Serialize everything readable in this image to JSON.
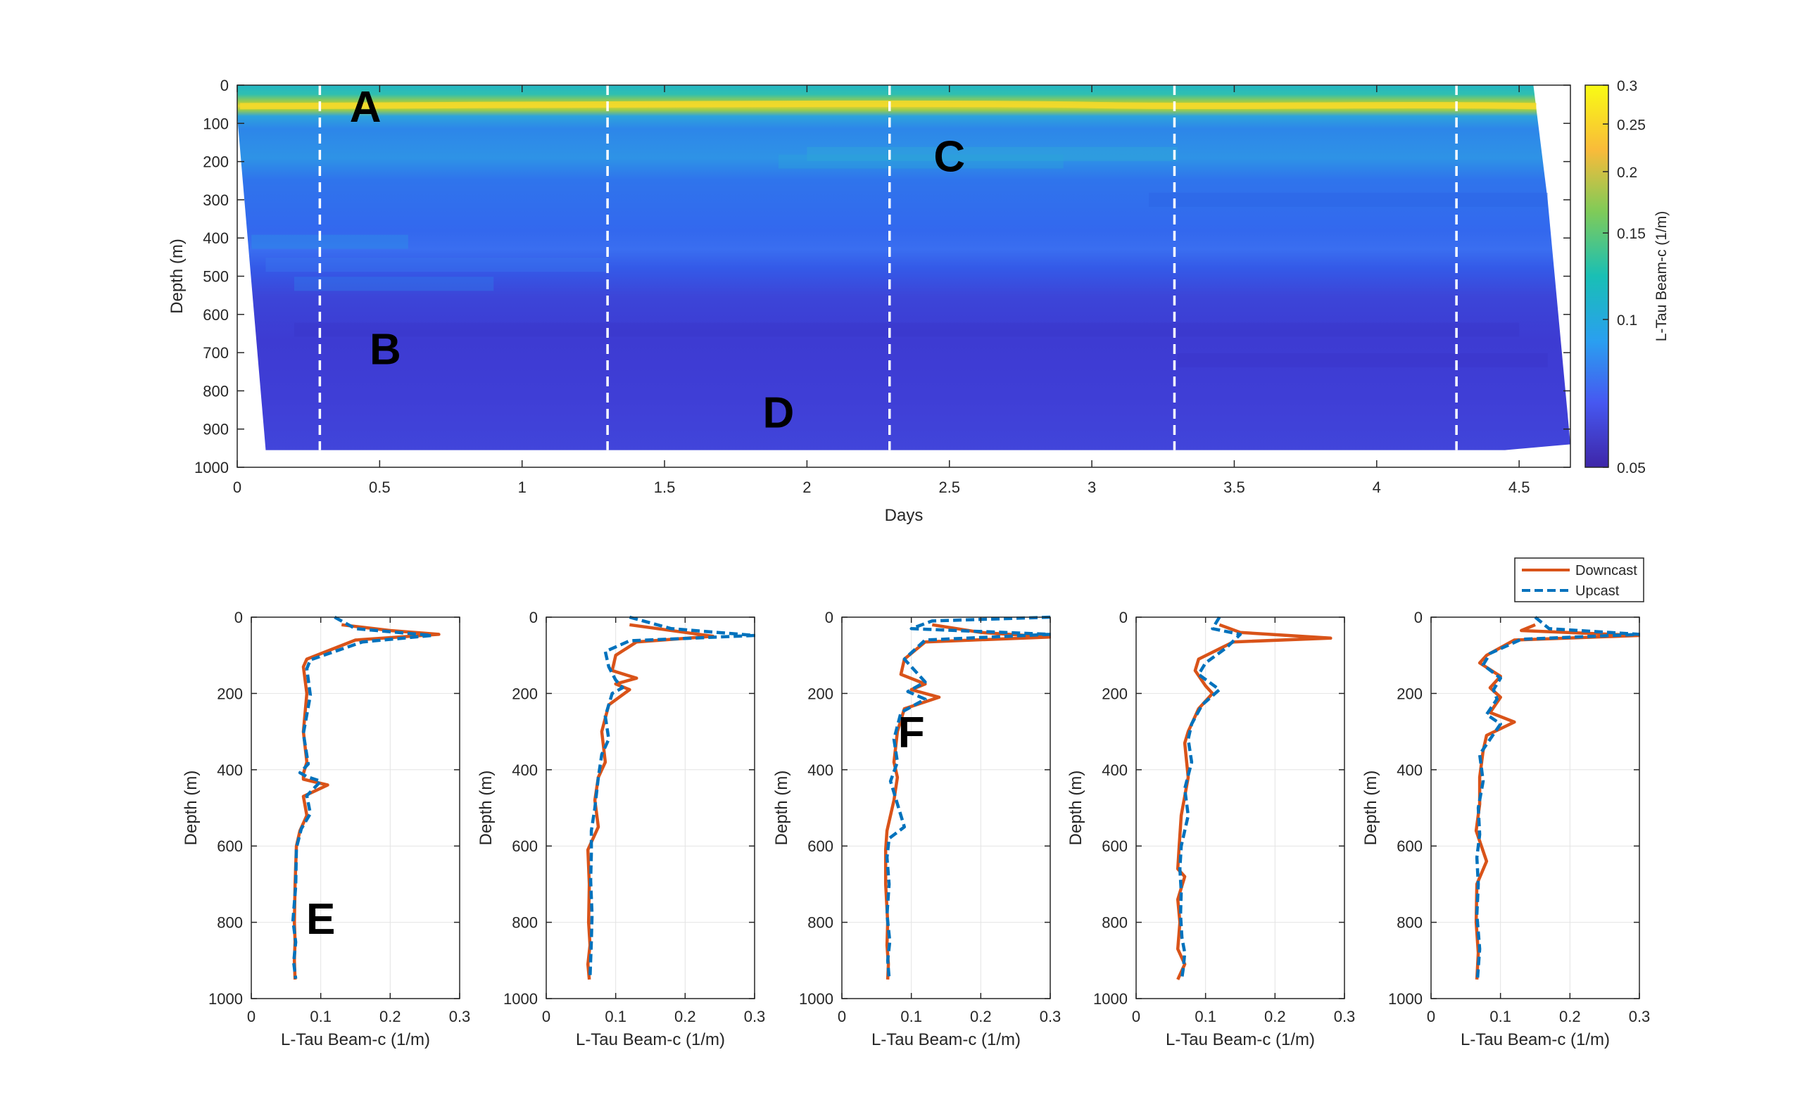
{
  "chart_data": [
    {
      "type": "heatmap",
      "xlabel": "Days",
      "ylabel": "Depth (m)",
      "xlim": [
        0,
        4.68
      ],
      "ylim": [
        1000,
        0
      ],
      "x_ticks": [
        "0",
        "0.5",
        "1",
        "1.5",
        "2",
        "2.5",
        "3",
        "3.5",
        "4",
        "4.5"
      ],
      "y_ticks": [
        "0",
        "100",
        "200",
        "300",
        "400",
        "500",
        "600",
        "700",
        "800",
        "900",
        "1000"
      ],
      "colorbar": {
        "label": "L-Tau Beam-c (1/m)",
        "range": [
          0.05,
          0.3
        ],
        "scale": "log",
        "ticks": [
          "0.05",
          "0.1",
          "0.15",
          "0.2",
          "0.25",
          "0.3"
        ],
        "colors": [
          "#3e26a8",
          "#4658f1",
          "#2a9ff0",
          "#19bfb5",
          "#80cb58",
          "#f9bb3a",
          "#f9fb14"
        ]
      },
      "cast_lines_days": [
        0.29,
        1.3,
        2.29,
        3.29,
        4.28
      ],
      "annotations": [
        {
          "text": "A",
          "day": 0.45,
          "depth": 55
        },
        {
          "text": "B",
          "day": 0.52,
          "depth": 690
        },
        {
          "text": "C",
          "day": 2.5,
          "depth": 185
        },
        {
          "text": "D",
          "day": 1.9,
          "depth": 855
        }
      ],
      "profile_depths": [
        0,
        25,
        40,
        50,
        60,
        80,
        100,
        150,
        200,
        250,
        300,
        350,
        400,
        450,
        500,
        550,
        600,
        650,
        700,
        750,
        800,
        850,
        900,
        950
      ],
      "profile_values": [
        0.14,
        0.17,
        0.24,
        0.27,
        0.23,
        0.14,
        0.11,
        0.1,
        0.12,
        0.1,
        0.09,
        0.085,
        0.095,
        0.09,
        0.08,
        0.07,
        0.065,
        0.06,
        0.06,
        0.062,
        0.065,
        0.07,
        0.068,
        0.066
      ]
    },
    {
      "type": "line",
      "xlabel": "L-Tau Beam-c (1/m)",
      "ylabel": "Depth (m)",
      "xlim": [
        0,
        0.3
      ],
      "ylim": [
        1000,
        0
      ],
      "x_ticks": [
        "0",
        "0.1",
        "0.2",
        "0.3"
      ],
      "y_ticks": [
        "0",
        "200",
        "400",
        "600",
        "800",
        "1000"
      ],
      "annotation": "E",
      "annotation_depth": 790,
      "series": [
        {
          "name": "Downcast",
          "color": "#d95319",
          "x": [
            0.13,
            0.2,
            0.27,
            0.15,
            0.08,
            0.075,
            0.08,
            0.075,
            0.08,
            0.075,
            0.075,
            0.11,
            0.075,
            0.08,
            0.07,
            0.065,
            0.063,
            0.062,
            0.063,
            0.062,
            0.063
          ],
          "y": [
            20,
            35,
            45,
            60,
            110,
            130,
            200,
            300,
            380,
            410,
            425,
            440,
            470,
            520,
            560,
            600,
            700,
            800,
            850,
            900,
            950
          ]
        },
        {
          "name": "Upcast",
          "color": "#0072bd",
          "x": [
            0.12,
            0.15,
            0.26,
            0.16,
            0.085,
            0.08,
            0.085,
            0.075,
            0.082,
            0.07,
            0.08,
            0.1,
            0.08,
            0.085,
            0.072,
            0.065,
            0.064,
            0.06,
            0.064,
            0.061,
            0.064
          ],
          "y": [
            0,
            30,
            48,
            65,
            112,
            135,
            205,
            305,
            385,
            408,
            418,
            430,
            468,
            515,
            555,
            605,
            705,
            795,
            852,
            905,
            948
          ]
        }
      ]
    },
    {
      "type": "line",
      "xlabel": "L-Tau Beam-c (1/m)",
      "ylabel": "Depth (m)",
      "xlim": [
        0,
        0.3
      ],
      "ylim": [
        1000,
        0
      ],
      "x_ticks": [
        "0",
        "0.1",
        "0.2",
        "0.3"
      ],
      "y_ticks": [
        "0",
        "200",
        "400",
        "600",
        "800",
        "1000"
      ],
      "series": [
        {
          "name": "Downcast",
          "color": "#d95319",
          "x": [
            0.12,
            0.2,
            0.24,
            0.13,
            0.1,
            0.095,
            0.13,
            0.1,
            0.12,
            0.09,
            0.08,
            0.085,
            0.075,
            0.07,
            0.075,
            0.06,
            0.062,
            0.061,
            0.063,
            0.06,
            0.062
          ],
          "y": [
            20,
            40,
            50,
            65,
            100,
            140,
            160,
            175,
            190,
            230,
            300,
            380,
            420,
            480,
            550,
            610,
            700,
            800,
            860,
            910,
            950
          ]
        },
        {
          "name": "Upcast",
          "color": "#0072bd",
          "x": [
            0.12,
            0.18,
            0.3,
            0.12,
            0.085,
            0.09,
            0.1,
            0.11,
            0.095,
            0.085,
            0.09,
            0.08,
            0.075,
            0.07,
            0.065,
            0.065,
            0.064,
            0.066,
            0.065,
            0.064,
            0.063
          ],
          "y": [
            0,
            30,
            48,
            62,
            90,
            130,
            165,
            185,
            200,
            260,
            320,
            360,
            420,
            500,
            560,
            620,
            690,
            780,
            850,
            900,
            945
          ]
        }
      ]
    },
    {
      "type": "line",
      "xlabel": "L-Tau Beam-c (1/m)",
      "ylabel": "Depth (m)",
      "xlim": [
        0,
        0.3
      ],
      "ylim": [
        1000,
        0
      ],
      "x_ticks": [
        "0",
        "0.1",
        "0.2",
        "0.3"
      ],
      "y_ticks": [
        "0",
        "200",
        "400",
        "600",
        "800",
        "1000"
      ],
      "annotation": "F",
      "annotation_depth": 300,
      "series": [
        {
          "name": "Downcast",
          "color": "#d95319",
          "x": [
            0.13,
            0.2,
            0.3,
            0.12,
            0.09,
            0.085,
            0.12,
            0.1,
            0.14,
            0.09,
            0.08,
            0.075,
            0.08,
            0.075,
            0.065,
            0.063,
            0.063,
            0.066,
            0.065,
            0.067,
            0.066
          ],
          "y": [
            20,
            40,
            52,
            65,
            110,
            150,
            175,
            190,
            210,
            240,
            300,
            380,
            420,
            480,
            560,
            610,
            700,
            800,
            860,
            910,
            950
          ]
        },
        {
          "name": "Upcast",
          "color": "#0072bd",
          "x": [
            0.3,
            0.13,
            0.1,
            0.3,
            0.12,
            0.09,
            0.12,
            0.095,
            0.12,
            0.085,
            0.075,
            0.08,
            0.07,
            0.09,
            0.068,
            0.065,
            0.068,
            0.065,
            0.069,
            0.066,
            0.068
          ],
          "y": [
            0,
            10,
            30,
            45,
            60,
            110,
            170,
            195,
            215,
            250,
            320,
            380,
            430,
            550,
            580,
            630,
            700,
            780,
            850,
            900,
            945
          ]
        }
      ]
    },
    {
      "type": "line",
      "xlabel": "L-Tau Beam-c (1/m)",
      "ylabel": "Depth (m)",
      "xlim": [
        0,
        0.3
      ],
      "ylim": [
        1000,
        0
      ],
      "x_ticks": [
        "0",
        "0.1",
        "0.2",
        "0.3"
      ],
      "y_ticks": [
        "0",
        "200",
        "400",
        "600",
        "800",
        "1000"
      ],
      "series": [
        {
          "name": "Downcast",
          "color": "#d95319",
          "x": [
            0.12,
            0.15,
            0.28,
            0.14,
            0.09,
            0.085,
            0.1,
            0.11,
            0.09,
            0.075,
            0.07,
            0.075,
            0.065,
            0.062,
            0.06,
            0.07,
            0.06,
            0.063,
            0.06,
            0.07,
            0.06
          ],
          "y": [
            20,
            40,
            55,
            65,
            110,
            140,
            180,
            200,
            240,
            300,
            330,
            420,
            520,
            600,
            660,
            680,
            740,
            800,
            870,
            910,
            950
          ]
        },
        {
          "name": "Upcast",
          "color": "#0072bd",
          "x": [
            0.12,
            0.11,
            0.15,
            0.13,
            0.1,
            0.09,
            0.12,
            0.095,
            0.08,
            0.075,
            0.08,
            0.07,
            0.075,
            0.065,
            0.063,
            0.065,
            0.064,
            0.066,
            0.07,
            0.068,
            0.066
          ],
          "y": [
            0,
            30,
            45,
            80,
            120,
            150,
            190,
            230,
            280,
            320,
            380,
            450,
            520,
            600,
            660,
            720,
            780,
            840,
            880,
            920,
            945
          ]
        }
      ]
    },
    {
      "type": "line",
      "xlabel": "L-Tau Beam-c (1/m)",
      "ylabel": "Depth (m)",
      "xlim": [
        0,
        0.3
      ],
      "ylim": [
        1000,
        0
      ],
      "x_ticks": [
        "0",
        "0.1",
        "0.2",
        "0.3"
      ],
      "y_ticks": [
        "0",
        "200",
        "400",
        "600",
        "800",
        "1000"
      ],
      "legend": "top-right",
      "series": [
        {
          "name": "Downcast",
          "color": "#d95319",
          "x": [
            0.15,
            0.13,
            0.3,
            0.12,
            0.08,
            0.07,
            0.1,
            0.085,
            0.1,
            0.085,
            0.12,
            0.08,
            0.075,
            0.07,
            0.07,
            0.065,
            0.08,
            0.066,
            0.065,
            0.068,
            0.066
          ],
          "y": [
            20,
            35,
            48,
            60,
            100,
            120,
            155,
            185,
            210,
            250,
            275,
            310,
            350,
            420,
            490,
            560,
            640,
            700,
            800,
            880,
            950
          ]
        },
        {
          "name": "Upcast",
          "color": "#0072bd",
          "x": [
            0.15,
            0.17,
            0.3,
            0.13,
            0.085,
            0.075,
            0.1,
            0.09,
            0.095,
            0.08,
            0.1,
            0.085,
            0.07,
            0.075,
            0.068,
            0.07,
            0.066,
            0.068,
            0.066,
            0.07,
            0.067
          ],
          "y": [
            0,
            30,
            45,
            58,
            95,
            125,
            160,
            190,
            215,
            255,
            280,
            320,
            360,
            430,
            500,
            570,
            630,
            700,
            780,
            870,
            945
          ]
        }
      ]
    }
  ]
}
